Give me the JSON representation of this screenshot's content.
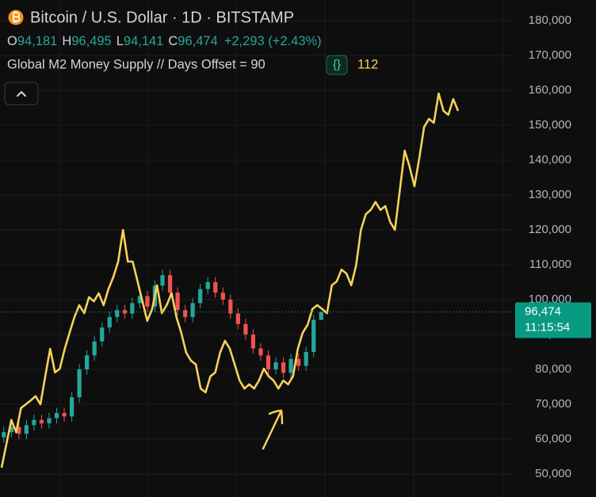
{
  "chart_data": {
    "type": "candlestick",
    "title": "Bitcoin / U.S. Dollar · 1D · BITSTAMP",
    "ohlc_legend": [
      {
        "key": "O",
        "value": {
          "value": 94181,
          "label": "94,181"
        }
      },
      {
        "key": "H",
        "value": {
          "value": 96495,
          "label": "96,495"
        }
      },
      {
        "key": "L",
        "value": {
          "value": 94141,
          "label": "94,141"
        }
      },
      {
        "key": "C",
        "value": {
          "value": 96474,
          "label": "96,474"
        }
      }
    ],
    "change": "+2,293 (+2.43%)",
    "up_color": "#26a69a",
    "down_color": "#ef5350",
    "open": [
      60500,
      62000,
      63500,
      61500,
      64000,
      65500,
      64500,
      66000,
      67500,
      66500,
      72000,
      80000,
      84000,
      88000,
      92000,
      95000,
      97000,
      96000,
      99000,
      101000,
      98000,
      104000,
      107000,
      102000,
      97000,
      95000,
      99000,
      103000,
      105000,
      102000,
      100000,
      96000,
      93000,
      90000,
      86000,
      84000,
      80000,
      82000,
      79000,
      83000,
      81000,
      85000,
      94181
    ],
    "high": [
      63500,
      65000,
      65000,
      65500,
      67000,
      67000,
      67500,
      69000,
      69000,
      73500,
      81500,
      85500,
      89500,
      93500,
      96500,
      98500,
      98500,
      100500,
      102500,
      102500,
      105500,
      108500,
      108500,
      103500,
      98500,
      100500,
      104500,
      106500,
      106500,
      103500,
      101500,
      97500,
      94500,
      91500,
      87500,
      85500,
      83500,
      83500,
      84500,
      84500,
      86500,
      95700,
      96495
    ],
    "low": [
      59000,
      60500,
      60000,
      60000,
      62500,
      63000,
      63000,
      64500,
      65000,
      65000,
      70500,
      78500,
      82500,
      86500,
      90500,
      93500,
      94500,
      94500,
      97500,
      96500,
      96500,
      102500,
      100500,
      95500,
      93500,
      93500,
      97500,
      101500,
      100500,
      98500,
      94500,
      91500,
      88500,
      84500,
      82500,
      78500,
      78500,
      77500,
      77500,
      79500,
      79500,
      83500,
      94141
    ],
    "close": [
      62000,
      63500,
      61500,
      64000,
      65500,
      64500,
      66000,
      67500,
      66500,
      72000,
      80000,
      84000,
      88000,
      92000,
      95000,
      97000,
      96000,
      99000,
      101000,
      98000,
      104000,
      107000,
      102000,
      97000,
      95000,
      99000,
      103000,
      105000,
      102000,
      100000,
      96000,
      93000,
      90000,
      86000,
      84000,
      80000,
      82000,
      79000,
      83000,
      81000,
      85000,
      94181,
      96474
    ],
    "overlay": {
      "type": "line",
      "name": "Global M2 Money Supply // Days Offset = 90",
      "badge": "{}",
      "value": 112,
      "color": "#f6d15b",
      "values": [
        51800,
        58600,
        65500,
        62000,
        68900,
        70000,
        71100,
        72300,
        70000,
        78000,
        85900,
        79100,
        80200,
        85900,
        90500,
        95000,
        98400,
        96100,
        100700,
        99500,
        101800,
        98400,
        103000,
        106400,
        110900,
        120000,
        110900,
        110900,
        105200,
        99500,
        93900,
        97300,
        104100,
        96100,
        98400,
        101800,
        95000,
        90500,
        84800,
        82500,
        81400,
        74500,
        73400,
        78000,
        79100,
        84800,
        88200,
        85900,
        81400,
        76800,
        74500,
        75700,
        74500,
        76800,
        80200,
        78000,
        76800,
        74500,
        76800,
        75700,
        78000,
        85900,
        90500,
        92700,
        97300,
        98400,
        97300,
        96100,
        104100,
        105200,
        108600,
        107500,
        104100,
        109800,
        120000,
        124500,
        125700,
        128000,
        125700,
        126800,
        122300,
        120000,
        131400,
        142700,
        138200,
        132500,
        140500,
        149500,
        151800,
        150700,
        159100,
        154100,
        153000,
        157500,
        154100
      ]
    },
    "last_price": {
      "value": 96474,
      "label": "96,474"
    },
    "countdown": "11:15:54",
    "last_price_color": "#089981",
    "ylim": [
      43400,
      185900
    ],
    "yticks": [
      {
        "value": 50000,
        "label": "50,000"
      },
      {
        "value": 60000,
        "label": "60,000"
      },
      {
        "value": 70000,
        "label": "70,000"
      },
      {
        "value": 80000,
        "label": "80,000"
      },
      {
        "value": 90000,
        "label": "90,000"
      },
      {
        "value": 100000,
        "label": "100,000"
      },
      {
        "value": 110000,
        "label": "110,000"
      },
      {
        "value": 120000,
        "label": "120,000"
      },
      {
        "value": 130000,
        "label": "130,000"
      },
      {
        "value": 140000,
        "label": "140,000"
      },
      {
        "value": 150000,
        "label": "150,000"
      },
      {
        "value": 160000,
        "label": "160,000"
      },
      {
        "value": 170000,
        "label": "170,000"
      },
      {
        "value": 180000,
        "label": "180,000"
      }
    ],
    "grid": true
  }
}
